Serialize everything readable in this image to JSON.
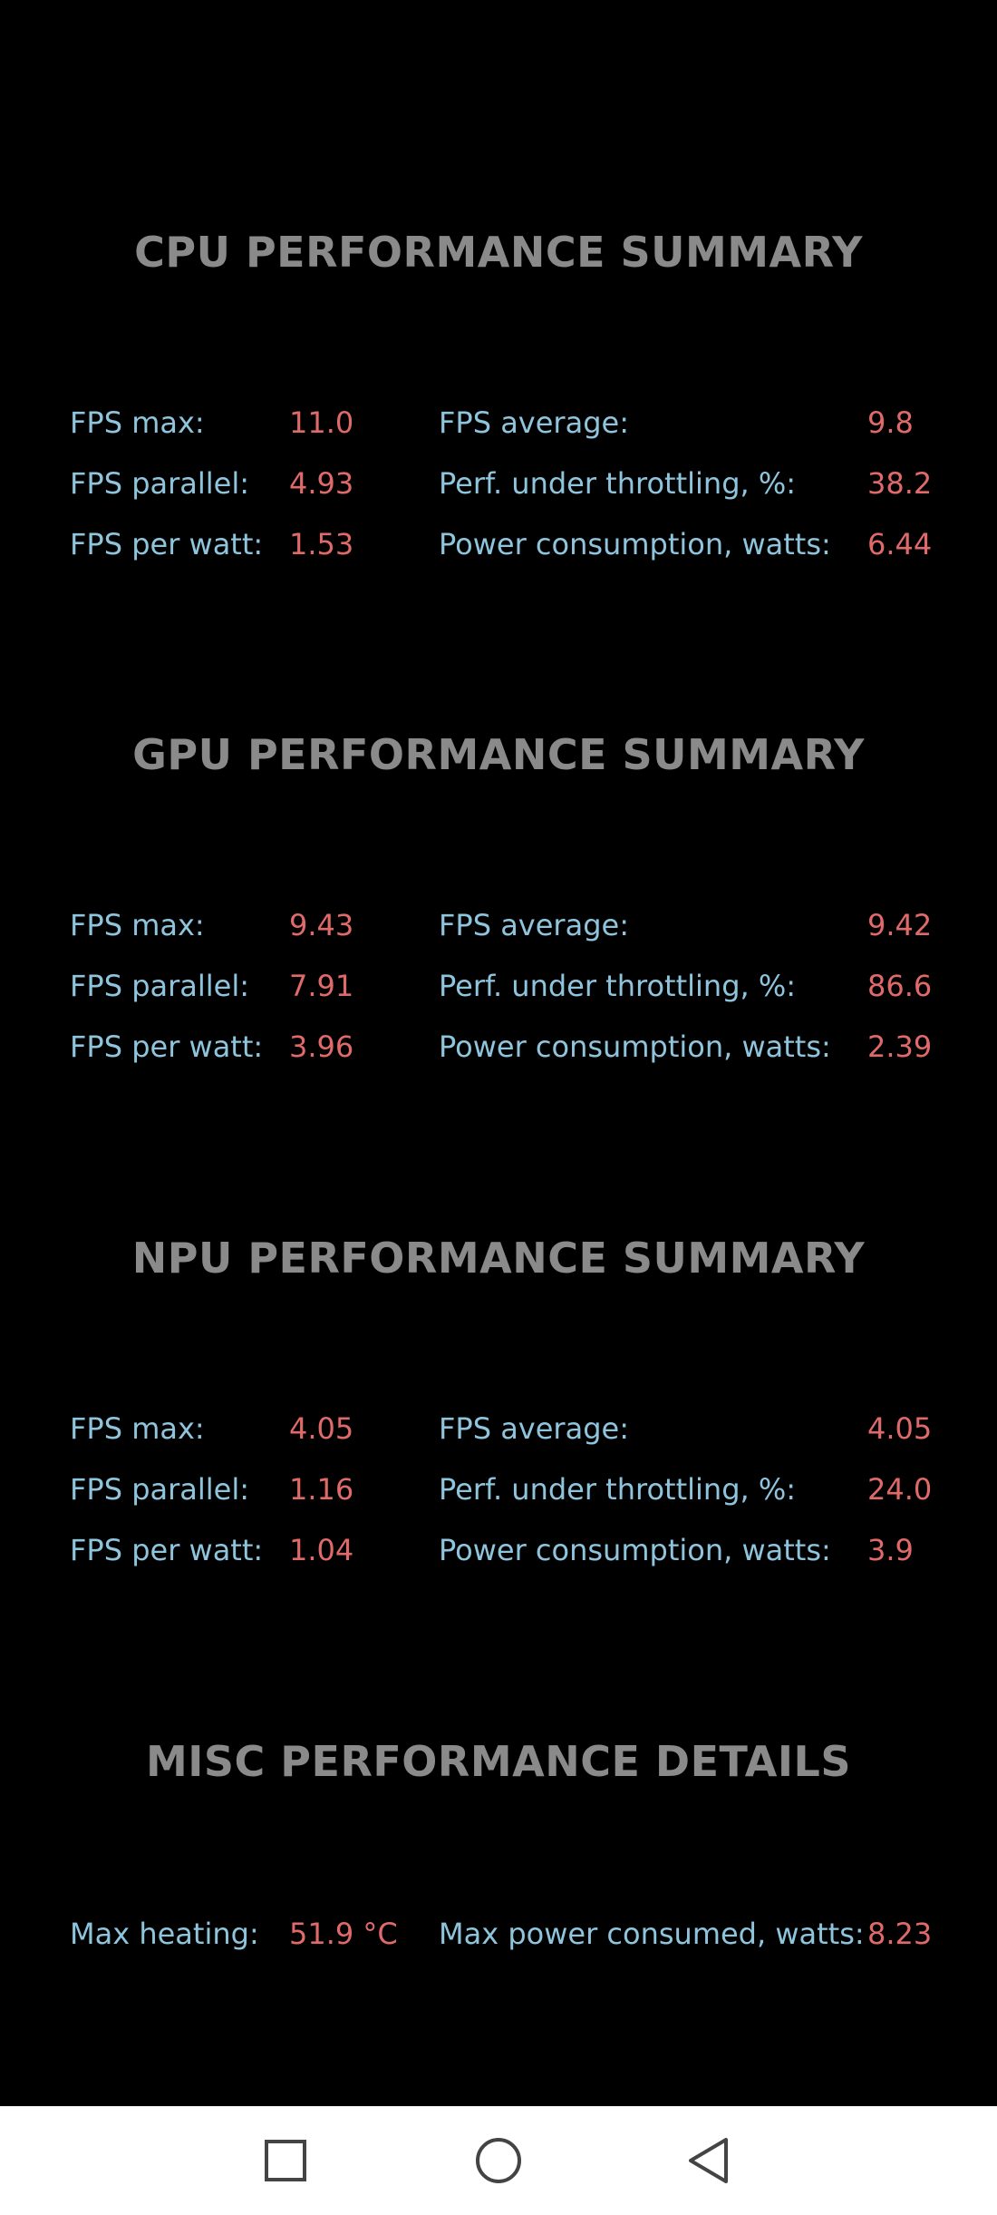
{
  "sections": [
    {
      "title": "CPU PERFORMANCE SUMMARY",
      "rows": [
        {
          "left_label": "FPS max:",
          "left_value": "11.0",
          "right_label": "FPS average:",
          "right_value": "9.8"
        },
        {
          "left_label": "FPS parallel:",
          "left_value": "4.93",
          "right_label": "Perf. under throttling, %:",
          "right_value": "38.2"
        },
        {
          "left_label": "FPS per watt:",
          "left_value": "1.53",
          "right_label": "Power consumption, watts:",
          "right_value": "6.44"
        }
      ]
    },
    {
      "title": "GPU PERFORMANCE SUMMARY",
      "rows": [
        {
          "left_label": "FPS max:",
          "left_value": "9.43",
          "right_label": "FPS average:",
          "right_value": "9.42"
        },
        {
          "left_label": "FPS parallel:",
          "left_value": "7.91",
          "right_label": "Perf. under throttling, %:",
          "right_value": "86.6"
        },
        {
          "left_label": "FPS per watt:",
          "left_value": "3.96",
          "right_label": "Power consumption, watts:",
          "right_value": "2.39"
        }
      ]
    },
    {
      "title": "NPU PERFORMANCE SUMMARY",
      "rows": [
        {
          "left_label": "FPS max:",
          "left_value": "4.05",
          "right_label": "FPS average:",
          "right_value": "4.05"
        },
        {
          "left_label": "FPS parallel:",
          "left_value": "1.16",
          "right_label": "Perf. under throttling, %:",
          "right_value": "24.0"
        },
        {
          "left_label": "FPS per watt:",
          "left_value": "1.04",
          "right_label": "Power consumption, watts:",
          "right_value": "3.9"
        }
      ]
    },
    {
      "title": "MISC PERFORMANCE DETAILS",
      "rows": [
        {
          "left_label": "Max heating:",
          "left_value": "51.9 °C",
          "right_label": "Max power consumed, watts:",
          "right_value": "8.23"
        }
      ]
    }
  ],
  "navbar": {
    "icons": [
      "recents-icon",
      "home-icon",
      "back-icon"
    ]
  },
  "colors": {
    "background": "#000000",
    "title": "#8a8a8a",
    "label": "#8fc4dd",
    "value": "#e06a6a",
    "navbar": "#ffffff"
  }
}
